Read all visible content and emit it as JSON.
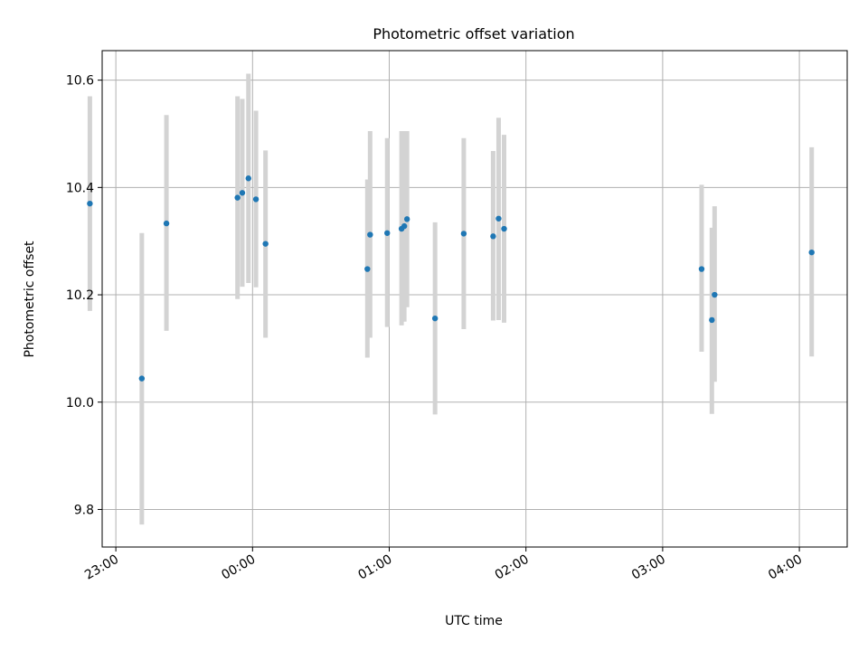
{
  "chart_data": {
    "type": "scatter",
    "title": "Photometric offset variation",
    "xlabel": "UTC time",
    "ylabel": "Photometric offset",
    "x_unit": "hours since 00:00 UTC",
    "xlim": [
      -1.1,
      4.35
    ],
    "ylim": [
      9.73,
      10.655
    ],
    "grid": true,
    "x_ticks": [
      {
        "value": -1,
        "label": "23:00"
      },
      {
        "value": 0,
        "label": "00:00"
      },
      {
        "value": 1,
        "label": "01:00"
      },
      {
        "value": 2,
        "label": "02:00"
      },
      {
        "value": 3,
        "label": "03:00"
      },
      {
        "value": 4,
        "label": "04:00"
      }
    ],
    "y_ticks": [
      {
        "value": 9.8,
        "label": "9.8"
      },
      {
        "value": 10.0,
        "label": "10.0"
      },
      {
        "value": 10.2,
        "label": "10.2"
      },
      {
        "value": 10.4,
        "label": "10.4"
      },
      {
        "value": 10.6,
        "label": "10.6"
      }
    ],
    "series": [
      {
        "marker_color": "#1f77b4",
        "errorbar_color": "#d3d3d3",
        "points": [
          {
            "x": -1.19,
            "y": 10.37,
            "ylow": 10.17,
            "yhigh": 10.57
          },
          {
            "x": -0.81,
            "y": 10.044,
            "ylow": 9.772,
            "yhigh": 10.315
          },
          {
            "x": -0.63,
            "y": 10.333,
            "ylow": 10.133,
            "yhigh": 10.535
          },
          {
            "x": -0.11,
            "y": 10.381,
            "ylow": 10.192,
            "yhigh": 10.57
          },
          {
            "x": -0.075,
            "y": 10.39,
            "ylow": 10.215,
            "yhigh": 10.565
          },
          {
            "x": -0.03,
            "y": 10.417,
            "ylow": 10.222,
            "yhigh": 10.612
          },
          {
            "x": 0.025,
            "y": 10.378,
            "ylow": 10.214,
            "yhigh": 10.543
          },
          {
            "x": 0.095,
            "y": 10.295,
            "ylow": 10.12,
            "yhigh": 10.469
          },
          {
            "x": 0.84,
            "y": 10.248,
            "ylow": 10.083,
            "yhigh": 10.415
          },
          {
            "x": 0.86,
            "y": 10.312,
            "ylow": 10.12,
            "yhigh": 10.505
          },
          {
            "x": 0.985,
            "y": 10.315,
            "ylow": 10.14,
            "yhigh": 10.492
          },
          {
            "x": 1.09,
            "y": 10.323,
            "ylow": 10.143,
            "yhigh": 10.505
          },
          {
            "x": 1.11,
            "y": 10.328,
            "ylow": 10.15,
            "yhigh": 10.505
          },
          {
            "x": 1.13,
            "y": 10.341,
            "ylow": 10.177,
            "yhigh": 10.505
          },
          {
            "x": 1.335,
            "y": 10.156,
            "ylow": 9.977,
            "yhigh": 10.335
          },
          {
            "x": 1.545,
            "y": 10.314,
            "ylow": 10.136,
            "yhigh": 10.492
          },
          {
            "x": 1.76,
            "y": 10.309,
            "ylow": 10.152,
            "yhigh": 10.468
          },
          {
            "x": 1.8,
            "y": 10.342,
            "ylow": 10.153,
            "yhigh": 10.53
          },
          {
            "x": 1.84,
            "y": 10.323,
            "ylow": 10.148,
            "yhigh": 10.498
          },
          {
            "x": 3.285,
            "y": 10.248,
            "ylow": 10.094,
            "yhigh": 10.405
          },
          {
            "x": 3.36,
            "y": 10.153,
            "ylow": 9.978,
            "yhigh": 10.325
          },
          {
            "x": 3.38,
            "y": 10.2,
            "ylow": 10.038,
            "yhigh": 10.365
          },
          {
            "x": 4.09,
            "y": 10.279,
            "ylow": 10.085,
            "yhigh": 10.475
          }
        ]
      }
    ]
  }
}
